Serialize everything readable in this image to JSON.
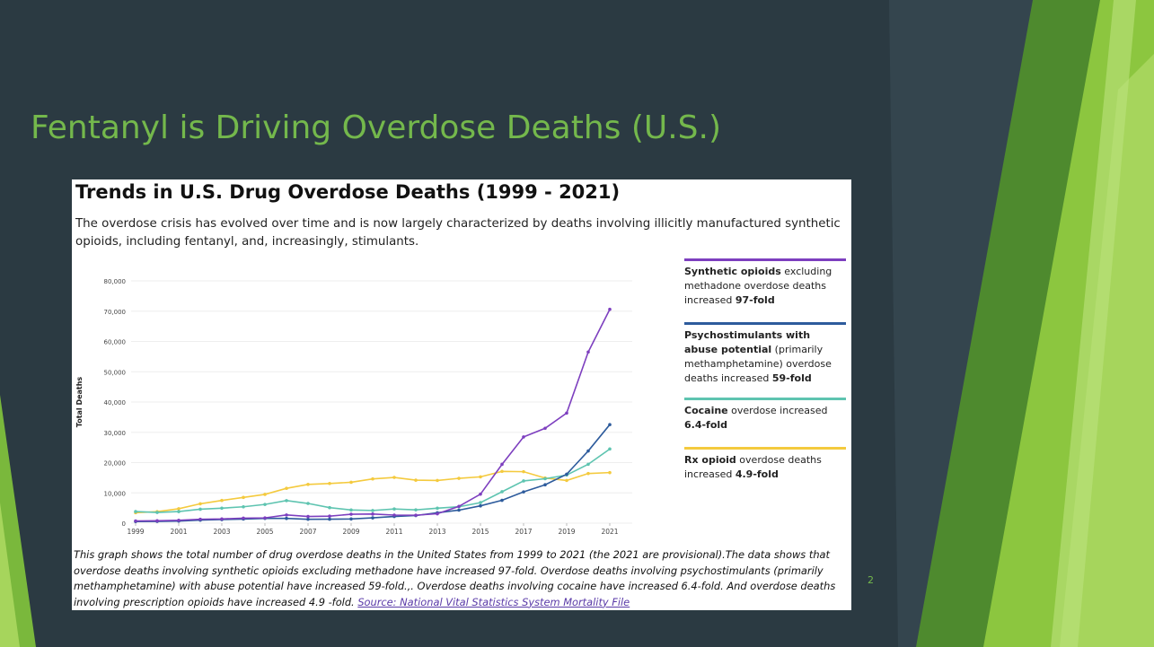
{
  "slide": {
    "title": "Fentanyl is Driving Overdose Deaths (U.S.)",
    "page_number": "2"
  },
  "chart_data": {
    "type": "line",
    "title": "Trends in U.S. Drug Overdose Deaths (1999 - 2021)",
    "subtitle": "The overdose crisis has evolved over time and is now largely characterized by deaths involving illicitly manufactured synthetic opioids, including fentanyl, and, increasingly, stimulants.",
    "y_label": "Total Deaths",
    "caption": "This graph shows the total number of drug overdose deaths in the United States from 1999 to 2021 (the 2021 are provisional).The data shows that overdose deaths involving synthetic opioids excluding methadone have increased 97-fold.  Overdose deaths involving psychostimulants (primarily methamphetamine) with abuse potential have increased 59-fold.,. Overdose deaths involving cocaine have increased 6.4-fold. And overdose deaths involving prescription opioids have increased 4.9 -fold.",
    "source": "Source: National Vital Statistics System Mortality File",
    "x": [
      1999,
      2000,
      2001,
      2002,
      2003,
      2004,
      2005,
      2006,
      2007,
      2008,
      2009,
      2010,
      2011,
      2012,
      2013,
      2014,
      2015,
      2016,
      2017,
      2018,
      2019,
      2020,
      2021
    ],
    "xlim": [
      1999,
      2021
    ],
    "xticks": [
      1999,
      2001,
      2003,
      2005,
      2007,
      2009,
      2011,
      2013,
      2015,
      2017,
      2019,
      2021
    ],
    "ylim": [
      0,
      80000
    ],
    "yticks": [
      0,
      {
        "value": 10000,
        "label": "10,000"
      },
      {
        "value": 20000,
        "label": "20,000"
      },
      {
        "value": 30000,
        "label": "30,000"
      },
      {
        "value": 40000,
        "label": "40,000"
      },
      {
        "value": 50000,
        "label": "50,000"
      },
      {
        "value": 60000,
        "label": "60,000"
      },
      {
        "value": 70000,
        "label": "70,000"
      },
      {
        "value": 80000,
        "label": "80,000"
      }
    ],
    "grid": true,
    "series": [
      {
        "name": "Synthetic opioids",
        "color": "#7d3fbf",
        "legend_runs": [
          {
            "text": " excluding methadone overdose deaths increased ",
            "bold": false
          },
          {
            "text": "97-fold",
            "bold": true
          }
        ],
        "values": [
          730,
          782,
          957,
          1295,
          1400,
          1664,
          1742,
          2707,
          2213,
          2306,
          2946,
          3007,
          2666,
          2628,
          3105,
          5544,
          9580,
          19413,
          28466,
          31335,
          36359,
          56516,
          70601
        ]
      },
      {
        "name": "Psychostimulants with abuse potential",
        "color": "#2d5b9c",
        "legend_runs": [
          {
            "text": " (primarily methamphetamine) overdose deaths increased ",
            "bold": false
          },
          {
            "text": "59-fold",
            "bold": true
          }
        ],
        "values": [
          547,
          578,
          690,
          1009,
          1201,
          1364,
          1577,
          1566,
          1291,
          1302,
          1393,
          1749,
          2216,
          2518,
          3428,
          4298,
          5716,
          7542,
          10333,
          12676,
          16167,
          23837,
          32537
        ]
      },
      {
        "name": "Cocaine",
        "color": "#5ec4b0",
        "legend_runs": [
          {
            "text": " overdose increased ",
            "bold": false
          },
          {
            "text": "6.4-fold",
            "bold": true
          }
        ],
        "values": [
          3822,
          3544,
          3833,
          4599,
          4947,
          5408,
          6183,
          7448,
          6512,
          5129,
          4350,
          4183,
          4681,
          4404,
          4944,
          5415,
          6784,
          10375,
          13942,
          14666,
          15883,
          19447,
          24486
        ]
      },
      {
        "name": "Rx opioid",
        "color": "#f4ca3e",
        "legend_runs": [
          {
            "text": " overdose deaths increased ",
            "bold": false
          },
          {
            "text": "4.9-fold",
            "bold": true
          }
        ],
        "values": [
          3442,
          3785,
          4770,
          6400,
          7500,
          8500,
          9500,
          11500,
          12800,
          13100,
          13500,
          14600,
          15100,
          14200,
          14100,
          14800,
          15300,
          17100,
          17000,
          14900,
          14100,
          16400,
          16700
        ]
      }
    ]
  }
}
